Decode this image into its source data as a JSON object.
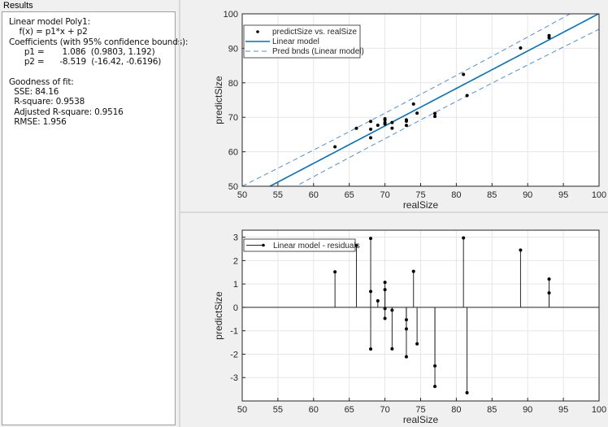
{
  "results": {
    "title": "Results",
    "lines": [
      "Linear model Poly1:",
      "    f(x) = p1*x + p2",
      "Coefficients (with 95% confidence bounds):",
      "      p1 =       1.086  (0.9803, 1.192)",
      "      p2 =      -8.519  (-16.42, -0.6196)",
      "",
      "Goodness of fit:",
      "  SSE: 84.16",
      "  R-square: 0.9538",
      "  Adjusted R-square: 0.9516",
      "  RMSE: 1.956"
    ]
  },
  "colors": {
    "fit": "#0072bd",
    "bounds": "#4d8fd6",
    "points": "#000000",
    "grid": "#e6e6e6"
  },
  "chart_data": [
    {
      "type": "scatter",
      "title": "",
      "xlabel": "realSize",
      "ylabel": "predictSize",
      "xlim": [
        50,
        100
      ],
      "ylim": [
        50,
        100
      ],
      "xticks": [
        "50",
        "55",
        "60",
        "65",
        "70",
        "75",
        "80",
        "85",
        "90",
        "95",
        "100"
      ],
      "yticks": [
        "50",
        "60",
        "70",
        "80",
        "90",
        "100"
      ],
      "grid": true,
      "legend_position": "top-left",
      "legend": [
        "predictSize vs. realSize",
        "Linear model",
        "Pred bnds (Linear model)"
      ],
      "fit": {
        "p1": 1.086,
        "p2": -8.519
      },
      "pred_bounds_halfwidth_at_mean": 3.7,
      "x": [
        63,
        66,
        68,
        68,
        68,
        69,
        70,
        70,
        70,
        70,
        71,
        71,
        73,
        73,
        73,
        74,
        74.5,
        77,
        77,
        81,
        81.5,
        89,
        93,
        93
      ],
      "y": [
        61.45,
        66.81,
        68.8,
        66.53,
        64.07,
        67.7,
        69.57,
        69.26,
        68.45,
        68.03,
        68.48,
        66.83,
        69.25,
        68.86,
        67.67,
        73.85,
        71.19,
        71.12,
        70.24,
        82.42,
        76.3,
        90.08,
        93.69,
        93.1
      ]
    },
    {
      "type": "stem",
      "xlabel": "realSize",
      "ylabel": "predictSize",
      "xlim": [
        50,
        100
      ],
      "ylim": [
        -4,
        3.3
      ],
      "xticks": [
        "50",
        "55",
        "60",
        "65",
        "70",
        "75",
        "80",
        "85",
        "90",
        "95",
        "100"
      ],
      "yticks": [
        "-3",
        "-2",
        "-1",
        "0",
        "1",
        "2",
        "3"
      ],
      "grid": true,
      "legend_position": "top-left",
      "legend": [
        "Linear model - residuals"
      ],
      "x": [
        63,
        66,
        68,
        68,
        68,
        69,
        70,
        70,
        70,
        70,
        71,
        71,
        73,
        73,
        73,
        74,
        74.5,
        77,
        77,
        81,
        81.5,
        89,
        93,
        93
      ],
      "residuals": [
        1.52,
        2.65,
        2.95,
        0.68,
        -1.78,
        0.28,
        1.07,
        0.76,
        -0.05,
        -0.47,
        -0.12,
        -1.77,
        -0.53,
        -0.92,
        -2.11,
        1.54,
        -1.56,
        -2.5,
        -3.38,
        2.97,
        -3.65,
        2.45,
        1.21,
        0.62
      ]
    }
  ]
}
